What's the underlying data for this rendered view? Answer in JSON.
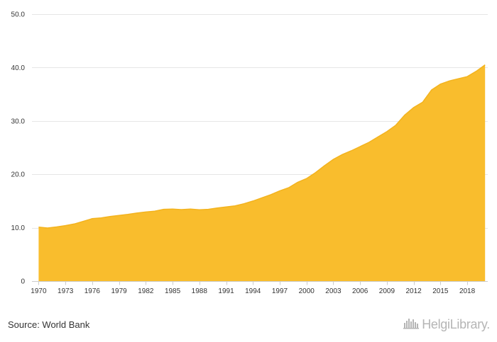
{
  "chart_data": {
    "type": "area",
    "title": "",
    "xlabel": "",
    "ylabel": "",
    "x": [
      1970,
      1971,
      1972,
      1973,
      1974,
      1975,
      1976,
      1977,
      1978,
      1979,
      1980,
      1981,
      1982,
      1983,
      1984,
      1985,
      1986,
      1987,
      1988,
      1989,
      1990,
      1991,
      1992,
      1993,
      1994,
      1995,
      1996,
      1997,
      1998,
      1999,
      2000,
      2001,
      2002,
      2003,
      2004,
      2005,
      2006,
      2007,
      2008,
      2009,
      2010,
      2011,
      2012,
      2013,
      2014,
      2015,
      2016,
      2017,
      2018,
      2019,
      2020
    ],
    "series": [
      {
        "values": [
          10.1,
          9.95,
          10.15,
          10.4,
          10.7,
          11.2,
          11.7,
          11.85,
          12.1,
          12.3,
          12.5,
          12.75,
          12.95,
          13.1,
          13.45,
          13.5,
          13.4,
          13.5,
          13.35,
          13.45,
          13.7,
          13.9,
          14.1,
          14.5,
          15.0,
          15.6,
          16.2,
          16.9,
          17.5,
          18.5,
          19.2,
          20.3,
          21.6,
          22.8,
          23.7,
          24.4,
          25.2,
          26.0,
          27.0,
          28.0,
          29.2,
          31.1,
          32.5,
          33.5,
          35.8,
          36.9,
          37.5,
          37.9,
          38.3,
          39.3,
          40.5
        ]
      }
    ],
    "ylim": [
      0,
      50
    ],
    "yticks": [
      0,
      10,
      20,
      30,
      40,
      50
    ],
    "ytick_labels": [
      "0",
      "10.0",
      "20.0",
      "30.0",
      "40.0",
      "50.0"
    ],
    "xticks": [
      1970,
      1973,
      1976,
      1979,
      1982,
      1985,
      1988,
      1991,
      1994,
      1997,
      2000,
      2003,
      2006,
      2009,
      2012,
      2015,
      2018
    ],
    "xtick_labels": [
      "1970",
      "1973",
      "1976",
      "1979",
      "1982",
      "1985",
      "1988",
      "1991",
      "1994",
      "1997",
      "2000",
      "2003",
      "2006",
      "2009",
      "2012",
      "2015",
      "2018"
    ],
    "grid": true,
    "fill_color": "#f9bd2d",
    "line_color": "#f3b31e",
    "grid_color": "#e6e6e6",
    "axis_color": "#cccccc"
  },
  "footer": {
    "source": "Source: World Bank",
    "brand": "HelgiLibrary.",
    "brand_icon": "city-skyline-icon"
  }
}
